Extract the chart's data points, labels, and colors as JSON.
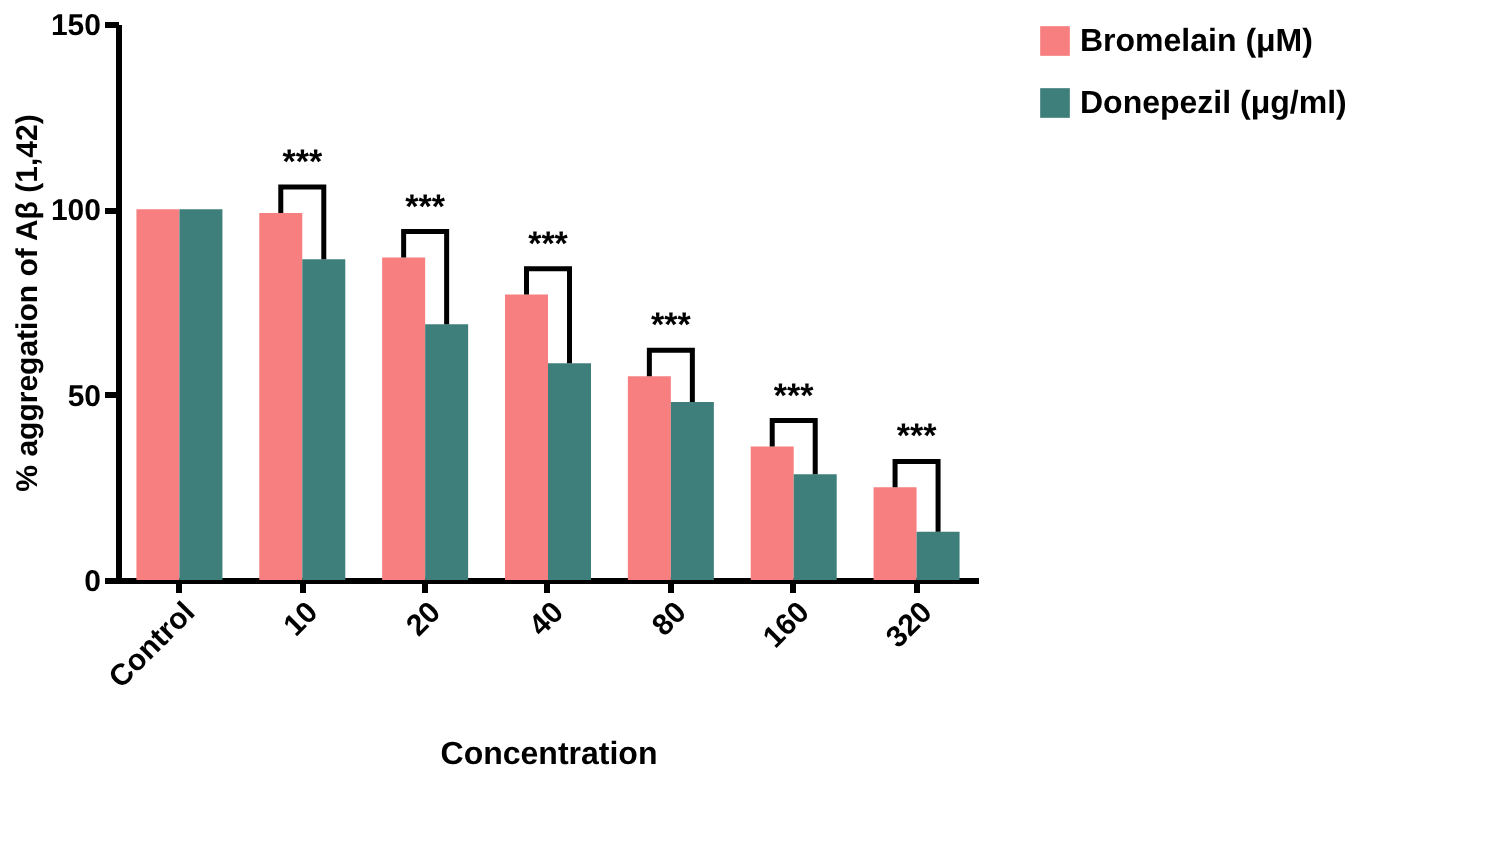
{
  "chart_data": {
    "type": "bar",
    "xlabel": "Concentration",
    "ylabel": "% aggregation of Aβ (1,42)",
    "categories": [
      "Control",
      "10",
      "20",
      "40",
      "80",
      "160",
      "320"
    ],
    "series": [
      {
        "name": "Bromelain  (μM)",
        "color": "#f87f7f",
        "values": [
          100,
          99,
          87,
          77,
          55,
          36,
          25
        ]
      },
      {
        "name": "Donepezil (μg/ml)",
        "color": "#3f7f7b",
        "values": [
          100,
          86.5,
          69,
          58.5,
          48,
          28.5,
          13
        ]
      }
    ],
    "ylim": [
      0,
      150
    ],
    "yticks": [
      0,
      50,
      100,
      150
    ],
    "grid": false,
    "legend": "top right",
    "annotations": [
      {
        "text": "***",
        "x": "10",
        "y": 99
      },
      {
        "text": "***",
        "x": "20",
        "y": 87
      },
      {
        "text": "***",
        "x": "40",
        "y": 77
      },
      {
        "text": "***",
        "x": "80",
        "y": 55
      },
      {
        "text": "***",
        "x": "160",
        "y": 36
      },
      {
        "text": "***",
        "x": "320",
        "y": 25
      }
    ]
  }
}
